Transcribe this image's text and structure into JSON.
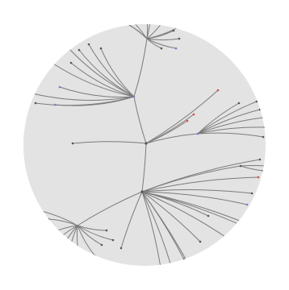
{
  "diagram": {
    "type": "radial-tree",
    "colors": {
      "background": "#ffffff",
      "disc": "#e3e3e3",
      "edge": "#7b7b7b",
      "node_default": "#555555",
      "node_blue": "#7777d6",
      "node_red": "#d84a4a"
    },
    "node_labels": [
      {
        "id": "top-label",
        "text": ""
      },
      {
        "id": "upper-hub-label",
        "text": ""
      },
      {
        "id": "right-cluster-label",
        "text": ""
      }
    ]
  }
}
